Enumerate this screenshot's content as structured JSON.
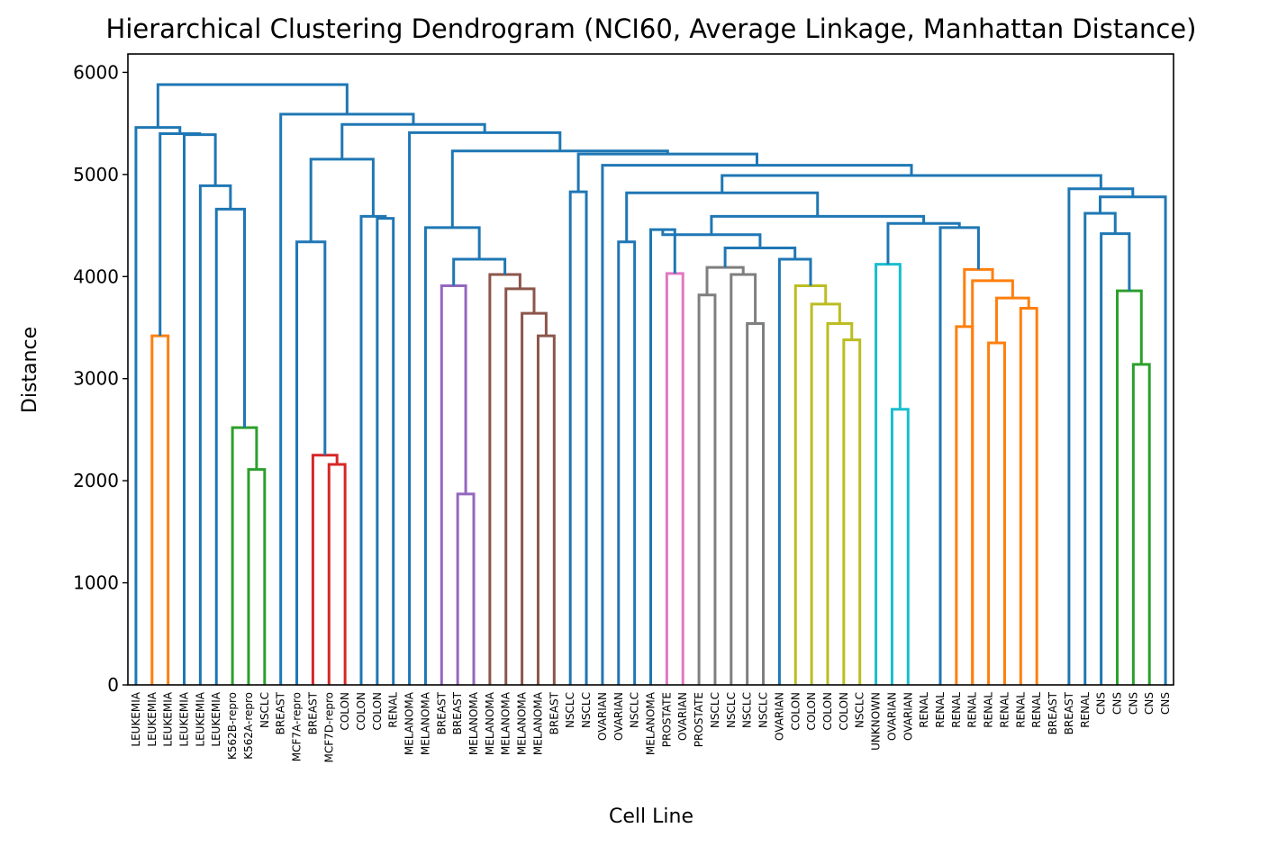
{
  "chart_data": {
    "type": "dendrogram",
    "title": "Hierarchical Clustering Dendrogram (NCI60, Average Linkage, Manhattan Distance)",
    "xlabel": "Cell Line",
    "ylabel": "Distance",
    "ylim": [
      0,
      6180
    ],
    "yticks": [
      0,
      1000,
      2000,
      3000,
      4000,
      5000,
      6000
    ],
    "grid": false,
    "colors": {
      "above_threshold": "#1f77b4",
      "c1": "#ff7f0e",
      "c2": "#2ca02c",
      "c3": "#d62728",
      "c4": "#9467bd",
      "c5": "#8c564b",
      "c6": "#e377c2",
      "c7": "#7f7f7f",
      "c8": "#bcbd22",
      "c9": "#17becf"
    },
    "leaves": [
      "LEUKEMIA",
      "LEUKEMIA",
      "LEUKEMIA",
      "LEUKEMIA",
      "LEUKEMIA",
      "LEUKEMIA",
      "K562B-repro",
      "K562A-repro",
      "NSCLC",
      "BREAST",
      "MCF7A-repro",
      "BREAST",
      "MCF7D-repro",
      "COLON",
      "COLON",
      "COLON",
      "RENAL",
      "MELANOMA",
      "MELANOMA",
      "BREAST",
      "BREAST",
      "MELANOMA",
      "MELANOMA",
      "MELANOMA",
      "MELANOMA",
      "MELANOMA",
      "BREAST",
      "NSCLC",
      "NSCLC",
      "OVARIAN",
      "OVARIAN",
      "NSCLC",
      "MELANOMA",
      "PROSTATE",
      "OVARIAN",
      "PROSTATE",
      "NSCLC",
      "NSCLC",
      "NSCLC",
      "NSCLC",
      "OVARIAN",
      "COLON",
      "COLON",
      "COLON",
      "COLON",
      "NSCLC",
      "UNKNOWN",
      "OVARIAN",
      "OVARIAN",
      "RENAL",
      "RENAL",
      "RENAL",
      "RENAL",
      "RENAL",
      "RENAL",
      "RENAL",
      "RENAL",
      "BREAST",
      "BREAST",
      "RENAL",
      "CNS",
      "CNS",
      "CNS",
      "CNS",
      "CNS"
    ],
    "merges": [
      {
        "children": [
          "L1",
          "L2"
        ],
        "height": 3420,
        "color": "c1"
      },
      {
        "children": [
          "L7",
          "L8"
        ],
        "height": 2110,
        "color": "c2"
      },
      {
        "children": [
          "L6",
          "M1"
        ],
        "height": 2520,
        "color": "c2"
      },
      {
        "children": [
          "L5",
          "M2"
        ],
        "height": 4660,
        "color": "above_threshold"
      },
      {
        "children": [
          "L4",
          "M3"
        ],
        "height": 4890,
        "color": "above_threshold"
      },
      {
        "children": [
          "L3",
          "M4"
        ],
        "height": 5390,
        "color": "above_threshold"
      },
      {
        "children": [
          "M0",
          "M5"
        ],
        "height": 5400,
        "color": "above_threshold"
      },
      {
        "children": [
          "L0",
          "M6"
        ],
        "height": 5460,
        "color": "above_threshold"
      },
      {
        "children": [
          "L12",
          "L13"
        ],
        "height": 2160,
        "color": "c3"
      },
      {
        "children": [
          "L11",
          "M8"
        ],
        "height": 2250,
        "color": "c3"
      },
      {
        "children": [
          "L10",
          "M9"
        ],
        "height": 4340,
        "color": "above_threshold"
      },
      {
        "children": [
          "L15",
          "L16"
        ],
        "height": 4570,
        "color": "above_threshold"
      },
      {
        "children": [
          "L14",
          "M11"
        ],
        "height": 4590,
        "color": "above_threshold"
      },
      {
        "children": [
          "M10",
          "M12"
        ],
        "height": 5150,
        "color": "above_threshold"
      },
      {
        "children": [
          "L20",
          "L21"
        ],
        "height": 1870,
        "color": "c4"
      },
      {
        "children": [
          "L19",
          "M14"
        ],
        "height": 3910,
        "color": "c4"
      },
      {
        "children": [
          "L25",
          "L26"
        ],
        "height": 3420,
        "color": "c5"
      },
      {
        "children": [
          "L24",
          "M16"
        ],
        "height": 3640,
        "color": "c5"
      },
      {
        "children": [
          "L23",
          "M17"
        ],
        "height": 3880,
        "color": "c5"
      },
      {
        "children": [
          "L22",
          "M18"
        ],
        "height": 4020,
        "color": "c5"
      },
      {
        "children": [
          "M15",
          "M19"
        ],
        "height": 4170,
        "color": "above_threshold"
      },
      {
        "children": [
          "L18",
          "M20"
        ],
        "height": 4480,
        "color": "above_threshold"
      },
      {
        "children": [
          "L27",
          "L28"
        ],
        "height": 4830,
        "color": "above_threshold"
      },
      {
        "children": [
          "L30",
          "L31"
        ],
        "height": 4340,
        "color": "above_threshold"
      },
      {
        "children": [
          "L33",
          "L34"
        ],
        "height": 4030,
        "color": "c6"
      },
      {
        "children": [
          "L32",
          "M24"
        ],
        "height": 4460,
        "color": "above_threshold"
      },
      {
        "children": [
          "L35",
          "L36"
        ],
        "height": 3820,
        "color": "c7"
      },
      {
        "children": [
          "L38",
          "L39"
        ],
        "height": 3540,
        "color": "c7"
      },
      {
        "children": [
          "L37",
          "M27"
        ],
        "height": 4020,
        "color": "c7"
      },
      {
        "children": [
          "M26",
          "M28"
        ],
        "height": 4090,
        "color": "c7"
      },
      {
        "children": [
          "L44",
          "L45"
        ],
        "height": 3380,
        "color": "c8"
      },
      {
        "children": [
          "L43",
          "M30"
        ],
        "height": 3540,
        "color": "c8"
      },
      {
        "children": [
          "L42",
          "M31"
        ],
        "height": 3730,
        "color": "c8"
      },
      {
        "children": [
          "L41",
          "M32"
        ],
        "height": 3910,
        "color": "c8"
      },
      {
        "children": [
          "L40",
          "M33"
        ],
        "height": 4170,
        "color": "above_threshold"
      },
      {
        "children": [
          "M29",
          "M34"
        ],
        "height": 4280,
        "color": "above_threshold"
      },
      {
        "children": [
          "M25",
          "M35"
        ],
        "height": 4410,
        "color": "above_threshold"
      },
      {
        "children": [
          "L47",
          "L48"
        ],
        "height": 2700,
        "color": "c9"
      },
      {
        "children": [
          "L46",
          "M37"
        ],
        "height": 4120,
        "color": "c9"
      },
      {
        "children": [
          "L53",
          "L54"
        ],
        "height": 3350,
        "color": "c1"
      },
      {
        "children": [
          "L55",
          "L56"
        ],
        "height": 3690,
        "color": "c1"
      },
      {
        "children": [
          "M39",
          "M40"
        ],
        "height": 3790,
        "color": "c1"
      },
      {
        "children": [
          "L52",
          "M41"
        ],
        "height": 3960,
        "color": "c1"
      },
      {
        "children": [
          "L51",
          "L52b"
        ],
        "height": 3510,
        "color": "c1"
      },
      {
        "children": [
          "M43",
          "M42"
        ],
        "height": 4070,
        "color": "c1"
      },
      {
        "children": [
          "L50",
          "M44"
        ],
        "height": 4480,
        "color": "above_threshold"
      },
      {
        "children": [
          "M38",
          "M45"
        ],
        "height": 4520,
        "color": "above_threshold"
      },
      {
        "children": [
          "M36",
          "M46"
        ],
        "height": 4590,
        "color": "above_threshold"
      },
      {
        "children": [
          "M23",
          "M47"
        ],
        "height": 4820,
        "color": "above_threshold"
      },
      {
        "children": [
          "L62",
          "L63"
        ],
        "height": 3140,
        "color": "c2"
      },
      {
        "children": [
          "L61",
          "M49"
        ],
        "height": 3860,
        "color": "c2"
      },
      {
        "children": [
          "L60",
          "M50"
        ],
        "height": 4420,
        "color": "above_threshold"
      },
      {
        "children": [
          "L59",
          "M51"
        ],
        "height": 4620,
        "color": "above_threshold"
      },
      {
        "children": [
          "L64",
          "L65"
        ],
        "height": 4650,
        "color": "above_threshold"
      },
      {
        "children": [
          "M52",
          "M53"
        ],
        "height": 4780,
        "color": "above_threshold"
      },
      {
        "children": [
          "L58",
          "M54"
        ],
        "height": 4860,
        "color": "above_threshold"
      },
      {
        "children": [
          "M48",
          "M55"
        ],
        "height": 4990,
        "color": "above_threshold"
      },
      {
        "children": [
          "L29",
          "M56"
        ],
        "height": 5090,
        "color": "above_threshold"
      },
      {
        "children": [
          "M22",
          "M57"
        ],
        "height": 5200,
        "color": "above_threshold"
      },
      {
        "children": [
          "M21",
          "M58"
        ],
        "height": 5230,
        "color": "above_threshold"
      },
      {
        "children": [
          "L17",
          "M59"
        ],
        "height": 5410,
        "color": "above_threshold"
      },
      {
        "children": [
          "M13",
          "M60"
        ],
        "height": 5490,
        "color": "above_threshold"
      },
      {
        "children": [
          "L9",
          "M61"
        ],
        "height": 5590,
        "color": "above_threshold"
      },
      {
        "children": [
          "M7",
          "M62"
        ],
        "height": 5880,
        "color": "above_threshold"
      }
    ]
  }
}
